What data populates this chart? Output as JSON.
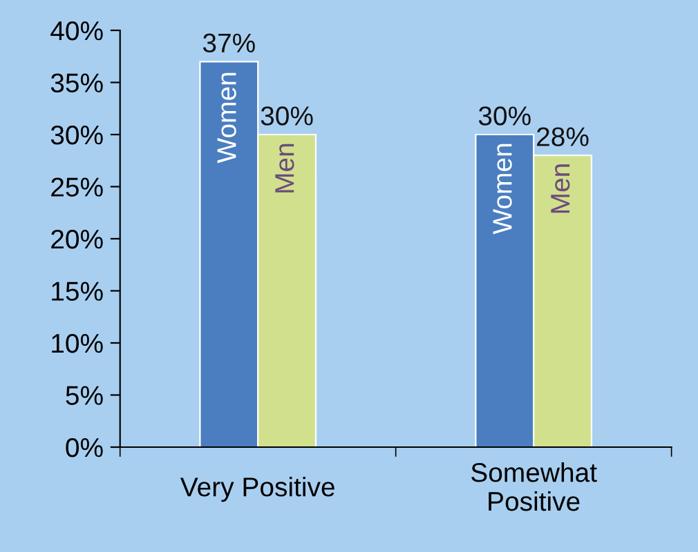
{
  "chart_data": {
    "type": "bar",
    "categories": [
      "Very Positive",
      "Somewhat\nPositive"
    ],
    "series": [
      {
        "name": "Women",
        "color": "#4a7ec0",
        "values": [
          37,
          30
        ],
        "value_labels": [
          "37%",
          "30%"
        ]
      },
      {
        "name": "Men",
        "color": "#d1e08c",
        "values": [
          30,
          28
        ],
        "value_labels": [
          "30%",
          "28%"
        ]
      }
    ],
    "ylim": [
      0,
      40
    ],
    "yticks": [
      {
        "value": 0,
        "label": "0%"
      },
      {
        "value": 5,
        "label": "5%"
      },
      {
        "value": 10,
        "label": "10%"
      },
      {
        "value": 15,
        "label": "15%"
      },
      {
        "value": 20,
        "label": "20%"
      },
      {
        "value": 25,
        "label": "25%"
      },
      {
        "value": 30,
        "label": "30%"
      },
      {
        "value": 35,
        "label": "35%"
      },
      {
        "value": 40,
        "label": "40%"
      }
    ],
    "grid": false,
    "legend": false
  }
}
